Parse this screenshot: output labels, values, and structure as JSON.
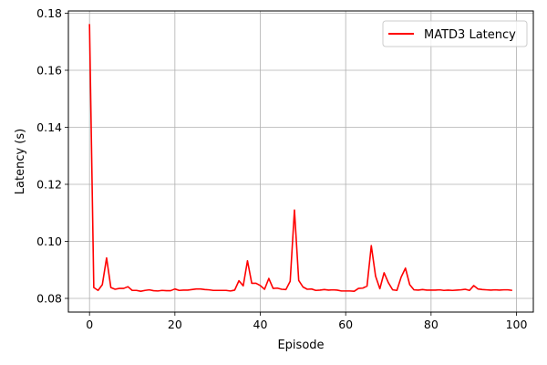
{
  "chart_data": {
    "type": "line",
    "title": "",
    "xlabel": "Episode",
    "ylabel": "Latency (s)",
    "xlim": [
      -4.95,
      103.95
    ],
    "ylim": [
      0.0752,
      0.1808
    ],
    "xticks": [
      0,
      20,
      40,
      60,
      80,
      100
    ],
    "xtick_labels": [
      "0",
      "20",
      "40",
      "60",
      "80",
      "100"
    ],
    "yticks": [
      0.08,
      0.1,
      0.12,
      0.14,
      0.16,
      0.18
    ],
    "ytick_labels": [
      "0.08",
      "0.10",
      "0.12",
      "0.14",
      "0.16",
      "0.18"
    ],
    "grid": true,
    "legend_position": "top-right",
    "series": [
      {
        "name": "MATD3 Latency",
        "color": "#ff0000",
        "x": [
          0,
          1,
          2,
          3,
          4,
          5,
          6,
          7,
          8,
          9,
          10,
          11,
          12,
          13,
          14,
          15,
          16,
          17,
          18,
          19,
          20,
          21,
          22,
          23,
          24,
          25,
          26,
          27,
          28,
          29,
          30,
          31,
          32,
          33,
          34,
          35,
          36,
          37,
          38,
          39,
          40,
          41,
          42,
          43,
          44,
          45,
          46,
          47,
          48,
          49,
          50,
          51,
          52,
          53,
          54,
          55,
          56,
          57,
          58,
          59,
          60,
          61,
          62,
          63,
          64,
          65,
          66,
          67,
          68,
          69,
          70,
          71,
          72,
          73,
          74,
          75,
          76,
          77,
          78,
          79,
          80,
          81,
          82,
          83,
          84,
          85,
          86,
          87,
          88,
          89,
          90,
          91,
          92,
          93,
          94,
          95,
          96,
          97,
          98,
          99
        ],
        "values": [
          0.1762,
          0.0838,
          0.0828,
          0.0848,
          0.0942,
          0.0838,
          0.0832,
          0.0835,
          0.0835,
          0.0841,
          0.0828,
          0.0828,
          0.0825,
          0.0828,
          0.083,
          0.0827,
          0.0826,
          0.0828,
          0.0827,
          0.0827,
          0.0833,
          0.0828,
          0.0829,
          0.0829,
          0.0831,
          0.0833,
          0.0833,
          0.0831,
          0.083,
          0.0828,
          0.0828,
          0.0828,
          0.0828,
          0.0826,
          0.0829,
          0.0862,
          0.0844,
          0.0932,
          0.0853,
          0.0853,
          0.0845,
          0.0832,
          0.087,
          0.0835,
          0.0836,
          0.0832,
          0.0831,
          0.086,
          0.111,
          0.0863,
          0.084,
          0.0832,
          0.0833,
          0.0828,
          0.0829,
          0.0831,
          0.0829,
          0.083,
          0.0829,
          0.0826,
          0.0826,
          0.0826,
          0.0825,
          0.0835,
          0.0836,
          0.0843,
          0.0985,
          0.0878,
          0.0834,
          0.089,
          0.0855,
          0.083,
          0.0828,
          0.0875,
          0.0906,
          0.0848,
          0.083,
          0.0829,
          0.0831,
          0.0829,
          0.0829,
          0.0829,
          0.083,
          0.0828,
          0.0829,
          0.0828,
          0.0829,
          0.083,
          0.0832,
          0.0828,
          0.0845,
          0.0833,
          0.0831,
          0.083,
          0.0829,
          0.083,
          0.0829,
          0.083,
          0.083,
          0.0828
        ]
      }
    ]
  }
}
